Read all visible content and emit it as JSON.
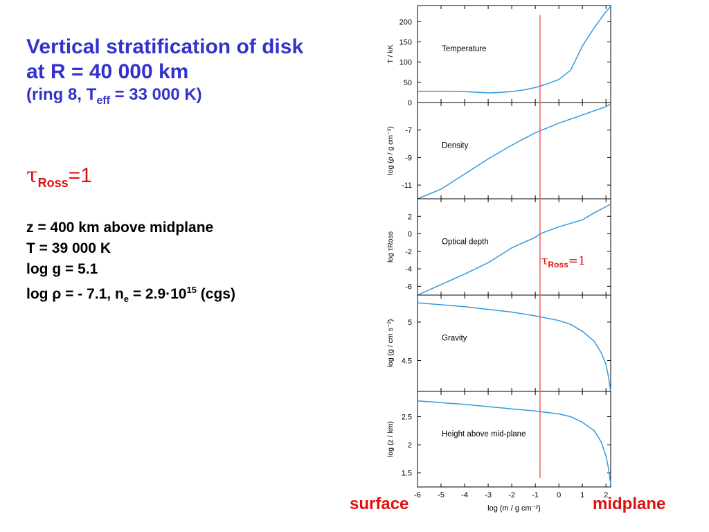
{
  "heading": {
    "line1": "Vertical stratification of disk",
    "line2": "at R = 40 000 km",
    "line3_pre": "(ring 8, T",
    "line3_sub": "eff",
    "line3_post": " = 33 000 K)"
  },
  "tau_label": {
    "symbol": "τ",
    "sub": "Ross",
    "value": "=1"
  },
  "params": {
    "z": "z = 400 km  above midplane",
    "T": "T = 39 000 K",
    "logg": "log g = 5.1",
    "logrho_pre": "log ρ = - 7.1,  n",
    "logrho_sub": "e",
    "logrho_mid": " = 2.9·10",
    "logrho_sup": "15",
    "logrho_post": " (cgs)"
  },
  "edge_labels": {
    "left": "surface",
    "right": "midplane"
  },
  "colors": {
    "title": "#3333cc",
    "curve": "#3399dd",
    "marker": "#ee6666",
    "red_text": "#dd1111"
  },
  "chart_data": {
    "type": "line",
    "xlabel": "log (m / g cm⁻²)",
    "xlim": [
      -6,
      2.2
    ],
    "x_ticks": [
      -6,
      -5,
      -4,
      -3,
      -2,
      -1,
      0,
      1,
      2
    ],
    "marker_x": -0.8,
    "marker_label": {
      "symbol": "τ",
      "sub": "Ross",
      "value": "=1"
    },
    "panels": [
      {
        "name": "Temperature",
        "ylabel": "T / kK",
        "ylim": [
          0,
          240
        ],
        "y_ticks": [
          0,
          50,
          100,
          150,
          200
        ],
        "series": [
          {
            "x": [
              -6,
              -5,
              -4,
              -3,
              -2.5,
              -2,
              -1.5,
              -1,
              -0.5,
              0,
              0.5,
              1,
              1.5,
              2,
              2.2
            ],
            "y": [
              28,
              28,
              27,
              24,
              25,
              27,
              31,
              37,
              46,
              57,
              80,
              140,
              185,
              225,
              238
            ]
          }
        ]
      },
      {
        "name": "Density",
        "ylabel": "log (ρ / g cm⁻³)",
        "ylim": [
          -12,
          -5
        ],
        "y_ticks": [
          -11,
          -9,
          -7
        ],
        "series": [
          {
            "x": [
              -6,
              -5,
              -4,
              -3,
              -2,
              -1,
              0,
              1,
              2,
              2.2
            ],
            "y": [
              -12,
              -11.3,
              -10.2,
              -9.1,
              -8.1,
              -7.2,
              -6.5,
              -5.9,
              -5.3,
              -5.1
            ]
          }
        ]
      },
      {
        "name": "Optical depth",
        "ylabel": "log τRoss",
        "ylim": [
          -7,
          4
        ],
        "y_ticks": [
          -6,
          -4,
          -2,
          0,
          2
        ],
        "series": [
          {
            "x": [
              -6,
              -5,
              -4,
              -3,
              -2,
              -1,
              -0.8,
              0,
              1,
              1.5,
              2,
              2.2
            ],
            "y": [
              -7,
              -5.8,
              -4.6,
              -3.3,
              -1.6,
              -0.4,
              0,
              0.8,
              1.6,
              2.4,
              3.1,
              3.4
            ]
          }
        ]
      },
      {
        "name": "Gravity",
        "ylabel": "log (g / cm s⁻²)",
        "ylim": [
          4.1,
          5.35
        ],
        "y_ticks": [
          4.5,
          5.0
        ],
        "series": [
          {
            "x": [
              -6,
              -4,
              -2,
              -1,
              0,
              0.5,
              1,
              1.5,
              1.8,
              2,
              2.1,
              2.2
            ],
            "y": [
              5.25,
              5.2,
              5.13,
              5.08,
              5.02,
              4.97,
              4.88,
              4.75,
              4.6,
              4.45,
              4.3,
              4.1
            ]
          }
        ]
      },
      {
        "name": "Height above mid-plane",
        "ylabel": "log (z / km)",
        "ylim": [
          1.25,
          2.95
        ],
        "y_ticks": [
          1.5,
          2.0,
          2.5
        ],
        "series": [
          {
            "x": [
              -6,
              -4,
              -2,
              -1,
              0,
              0.5,
              1,
              1.5,
              1.8,
              2,
              2.1,
              2.2
            ],
            "y": [
              2.78,
              2.72,
              2.64,
              2.6,
              2.55,
              2.5,
              2.4,
              2.25,
              2.05,
              1.8,
              1.6,
              1.3
            ]
          }
        ]
      }
    ]
  }
}
